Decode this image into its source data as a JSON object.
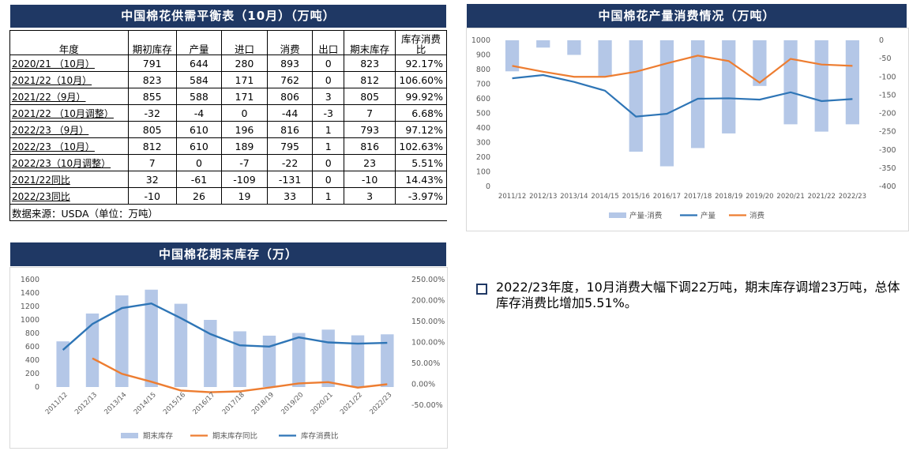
{
  "table": {
    "title": "中国棉花供需平衡表（10月）（万吨）",
    "headers": [
      "年度",
      "期初库存",
      "产量",
      "进口",
      "消费",
      "出口",
      "期末库存",
      "库存消费比"
    ],
    "rows": [
      [
        "2020/21 （10月）",
        "791",
        "644",
        "280",
        "893",
        "0",
        "823",
        "92.17%"
      ],
      [
        "2021/22（10月）",
        "823",
        "584",
        "171",
        "762",
        "0",
        "812",
        "106.60%"
      ],
      [
        "2021/22（9月）",
        "855",
        "588",
        "171",
        "806",
        "3",
        "805",
        "99.92%"
      ],
      [
        "2021/22 （10月调整）",
        "-32",
        "-4",
        "0",
        "-44",
        "-3",
        "7",
        "6.68%"
      ],
      [
        "2022/23 （9月）",
        "805",
        "610",
        "196",
        "816",
        "1",
        "793",
        "97.12%"
      ],
      [
        "2022/23 （10月）",
        "812",
        "610",
        "189",
        "795",
        "1",
        "816",
        "102.63%"
      ],
      [
        "2022/23（10月调整）",
        "7",
        "0",
        "-7",
        "-22",
        "0",
        "23",
        "5.51%"
      ],
      [
        "2021/22同比",
        "32",
        "-61",
        "-109",
        "-131",
        "0",
        "-10",
        "14.43%"
      ],
      [
        "2022/23同比",
        "-10",
        "26",
        "19",
        "33",
        "1",
        "3",
        "-3.97%"
      ]
    ],
    "source": "数据来源：USDA（单位：万吨）"
  },
  "note": "2022/23年度，10月消费大幅下调22万吨，期末库存调增23万吨，总体库存消费比增加5.51%。",
  "chart_data": [
    {
      "title": "中国棉花产量消费情况（万吨）",
      "type": "bar+line",
      "categories": [
        "2011/12",
        "2012/13",
        "2013/14",
        "2014/15",
        "2015/16",
        "2016/17",
        "2017/18",
        "2018/19",
        "2019/20",
        "2020/21",
        "2021/22",
        "2022/23"
      ],
      "category_tick_labels": [
        "2011/12",
        "2012/13",
        "2013/14",
        "2014/15",
        "2015/16",
        "2016/17",
        "2017/18",
        "2018/19",
        "2019/20",
        "2020/21",
        "2021/22",
        "2022/23"
      ],
      "ylim_left": [
        0,
        1000
      ],
      "yticks_left": [
        0,
        100,
        200,
        300,
        400,
        500,
        600,
        700,
        800,
        900,
        1000
      ],
      "ylim_right": [
        -400,
        0
      ],
      "yticks_right": [
        0,
        -50,
        -100,
        -150,
        -200,
        -250,
        -300,
        -350,
        -400
      ],
      "legend_position": "bottom",
      "series": [
        {
          "name": "产量-消费",
          "type": "bar",
          "axis": "right",
          "color": "#b4c7e7",
          "values": [
            -85,
            -20,
            -40,
            -100,
            -305,
            -345,
            -295,
            -255,
            -125,
            -230,
            -250,
            -230
          ]
        },
        {
          "name": "产量",
          "type": "line",
          "axis": "left",
          "color": "#2e75b6",
          "values": [
            740,
            762,
            715,
            655,
            478,
            497,
            600,
            603,
            594,
            644,
            584,
            598
          ]
        },
        {
          "name": "消费",
          "type": "line",
          "axis": "left",
          "color": "#ed7d31",
          "values": [
            825,
            785,
            750,
            750,
            785,
            842,
            895,
            858,
            710,
            873,
            834,
            825
          ]
        }
      ]
    },
    {
      "title": "中国棉花期末库存（万）",
      "type": "bar+line",
      "categories": [
        "2011/12",
        "2012/13",
        "2013/14",
        "2014/15",
        "2015/16",
        "2016/17",
        "2017/18",
        "2018/19",
        "2019/20",
        "2020/21",
        "2021/22",
        "2022/23"
      ],
      "ylim_left": [
        0,
        1600
      ],
      "yticks_left": [
        0,
        200,
        400,
        600,
        800,
        1000,
        1200,
        1400,
        1600
      ],
      "ylim_right": [
        -50,
        250
      ],
      "yticks_right": [
        "-50.00%",
        "0.00%",
        "50.00%",
        "100.00%",
        "150.00%",
        "200.00%",
        "250.00%"
      ],
      "legend_position": "bottom",
      "series": [
        {
          "name": "期末库存",
          "type": "bar",
          "axis": "left",
          "color": "#b4c7e7",
          "values": [
            680,
            1095,
            1365,
            1450,
            1240,
            1000,
            830,
            765,
            805,
            855,
            770,
            785
          ]
        },
        {
          "name": "期末库存同比",
          "type": "line",
          "axis": "right",
          "color": "#ed7d31",
          "values": [
            null,
            62,
            25,
            6,
            -15,
            -19,
            -17,
            -8,
            2,
            5,
            -8,
            0
          ]
        },
        {
          "name": "库存消费比",
          "type": "line",
          "axis": "right",
          "color": "#2e75b6",
          "values": [
            82,
            144,
            182,
            193,
            158,
            120,
            93,
            90,
            112,
            100,
            97,
            99
          ]
        }
      ]
    }
  ]
}
